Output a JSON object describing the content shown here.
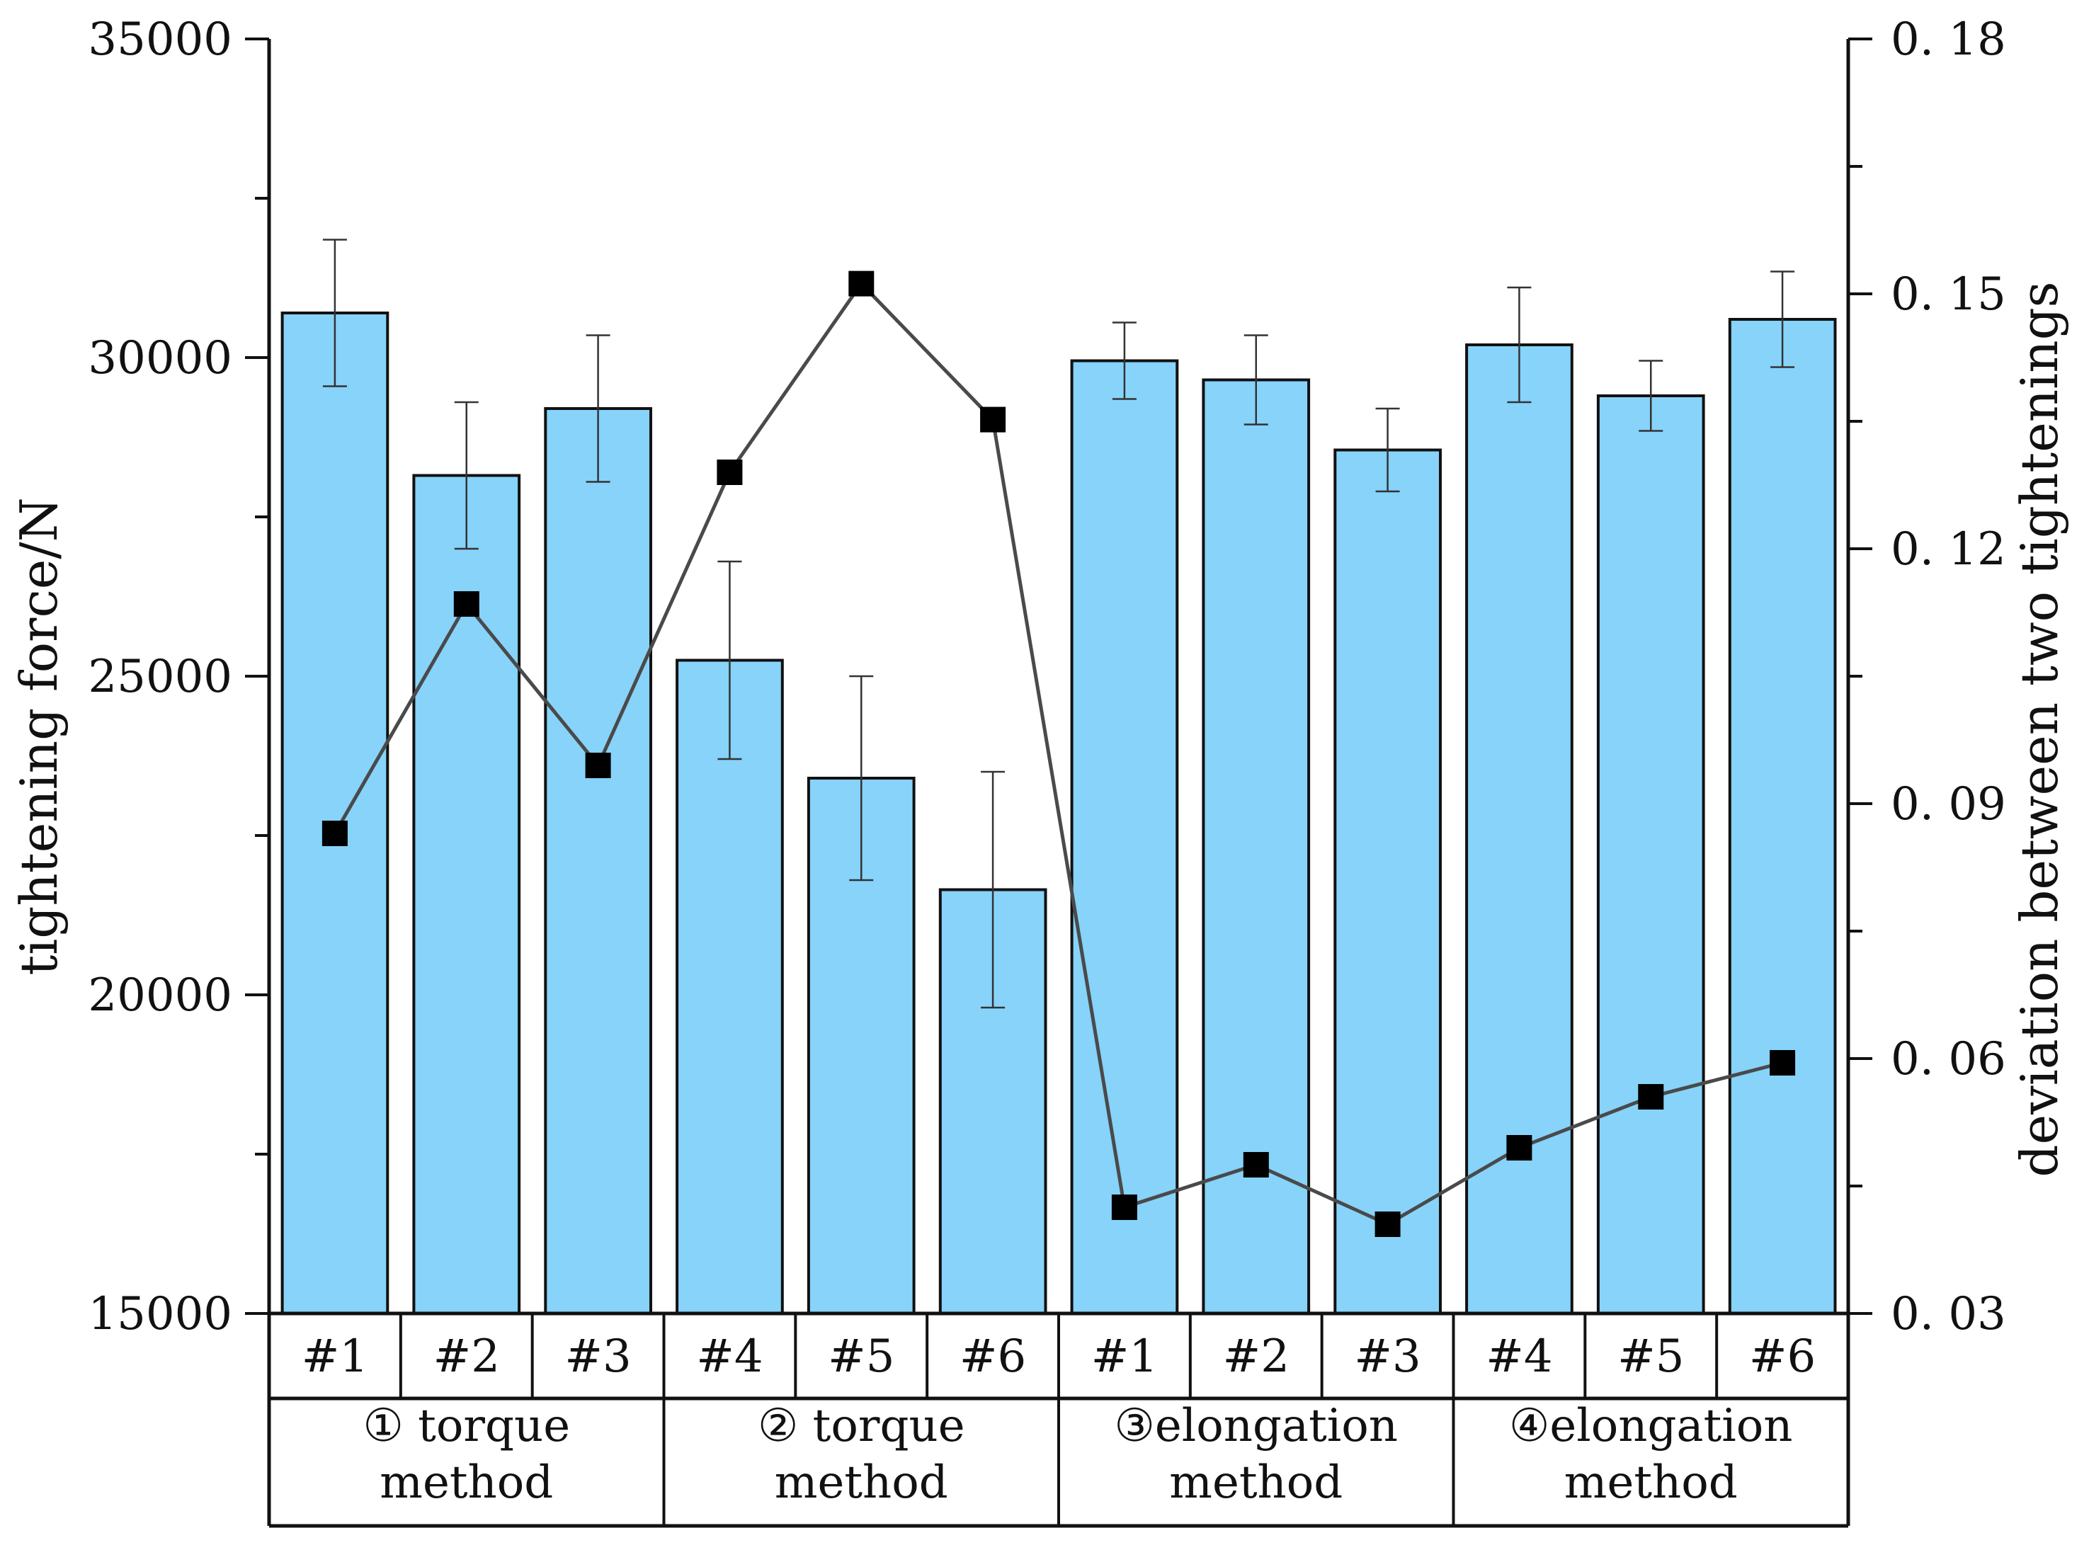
{
  "chart_data": {
    "type": "bar",
    "title": "",
    "xlabel": "",
    "ylabel": "tightening force/N",
    "y2label": "deviation between two tightenings",
    "ylim": [
      15000,
      35000
    ],
    "y2lim": [
      0.03,
      0.18
    ],
    "yticks": [
      "15000",
      "20000",
      "25000",
      "30000",
      "35000"
    ],
    "y2ticks": [
      "0. 03",
      "0. 06",
      "0. 09",
      "0. 12",
      "0. 15",
      "0. 18"
    ],
    "categories": [
      "#1",
      "#2",
      "#3",
      "#4",
      "#5",
      "#6",
      "#1",
      "#2",
      "#3",
      "#4",
      "#5",
      "#6"
    ],
    "groups": [
      {
        "line1": "① torque",
        "line2": "method",
        "start": 0,
        "end": 2
      },
      {
        "line1": "② torque",
        "line2": "method",
        "start": 3,
        "end": 5
      },
      {
        "line1": "③elongation",
        "line2": "method",
        "start": 6,
        "end": 8
      },
      {
        "line1": "④elongation",
        "line2": "method",
        "start": 9,
        "end": 11
      }
    ],
    "series": [
      {
        "name": "tightening force",
        "type": "bar",
        "axis": "left",
        "color": "#87D3FA",
        "values": [
          30700,
          28150,
          29200,
          25250,
          23400,
          21650,
          29950,
          29650,
          28550,
          30200,
          29400,
          30600
        ],
        "error": [
          1150,
          1150,
          1150,
          1550,
          1600,
          1850,
          600,
          700,
          650,
          900,
          550,
          750
        ]
      },
      {
        "name": "deviation between two tightenings",
        "type": "line",
        "axis": "right",
        "color": "#4a4a4a",
        "marker": "square",
        "values": [
          0.0865,
          0.1135,
          0.0945,
          0.129,
          0.1512,
          0.1352,
          0.0425,
          0.0475,
          0.0405,
          0.0495,
          0.0555,
          0.0595
        ]
      }
    ]
  }
}
